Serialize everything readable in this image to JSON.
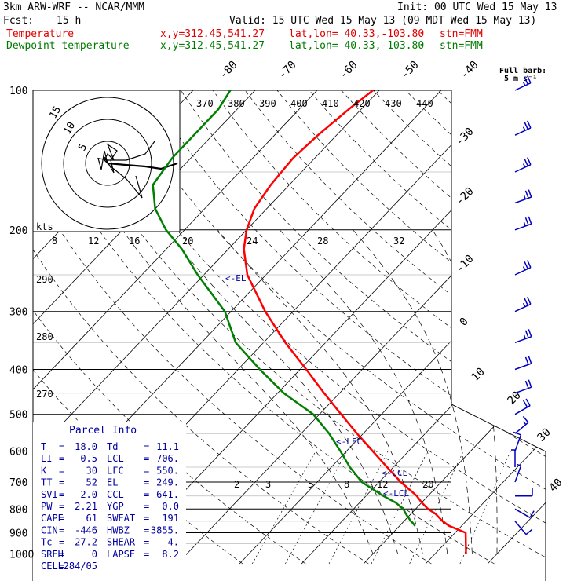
{
  "header": {
    "model": "3km ARW-WRF -- NCAR/MMM",
    "init": "Init: 00 UTC Wed 15 May 13",
    "fcst_label": "Fcst:",
    "fcst_hours": "15 h",
    "valid": "Valid: 15 UTC Wed 15 May 13 (09 MDT Wed 15 May 13)",
    "temp_line": {
      "name": "Temperature",
      "xy": "x,y=312.45,541.27",
      "latlon": "lat,lon= 40.33,-103.80",
      "stn": "stn=FMM"
    },
    "dew_line": {
      "name": "Dewpoint temperature",
      "xy": "x,y=312.45,541.27",
      "latlon": "lat,lon= 40.33,-103.80",
      "stn": "stn=FMM"
    },
    "barb_legend": "Full barb:",
    "barb_legend_units": "5 m s⁻¹"
  },
  "colors": {
    "temperature": "#ff0000",
    "dewpoint": "#008000",
    "wind_barbs": "#0000c0",
    "labels_blue": "#0000a0"
  },
  "chart_data": {
    "type": "line",
    "title": "Skew-T log-P",
    "pressure_levels": [
      "100",
      "200",
      "300",
      "400",
      "500",
      "600",
      "700",
      "800",
      "900",
      "1000"
    ],
    "isotherm_labels_top": [
      "-80",
      "-70",
      "-60",
      "-50",
      "-40"
    ],
    "isotherm_labels_right": [
      "-30",
      "-20",
      "-10",
      "0",
      "10",
      "20",
      "30",
      "40"
    ],
    "theta_labels": [
      "370",
      "380",
      "390",
      "400",
      "410",
      "420",
      "430",
      "440"
    ],
    "dry_adiabat_labels": [
      "290",
      "280",
      "270"
    ],
    "hodograph": {
      "units": "kts",
      "ring_labels": [
        "5",
        "10",
        "15"
      ],
      "speed_scale": [
        "8",
        "12",
        "16",
        "20",
        "24",
        "28",
        "32"
      ]
    },
    "mixing_ratio_labels": [
      "2",
      "3",
      "5",
      "8",
      "12",
      "20"
    ],
    "levels_labels": {
      "el": "<-EL",
      "lfc": "<-LFC",
      "ccl": "<-CCL",
      "lcl": "<-LCL"
    },
    "series": [
      {
        "name": "Temperature",
        "p": [
          1000,
          900,
          870,
          850,
          820,
          800,
          775,
          750,
          700,
          650,
          600,
          550,
          500,
          450,
          400,
          350,
          300,
          250,
          220,
          200,
          180,
          160,
          140,
          125,
          110,
          100
        ],
        "t": [
          25.0,
          21.7,
          18.0,
          16.2,
          14.0,
          12.0,
          10.0,
          8.2,
          3.5,
          -1.0,
          -5.8,
          -11.0,
          -16.5,
          -22.5,
          -29.0,
          -36.5,
          -44.5,
          -53.0,
          -57.5,
          -60.0,
          -62.0,
          -63.0,
          -63.5,
          -63.0,
          -62.0,
          -61.0
        ]
      },
      {
        "name": "Dewpoint temperature",
        "p": [
          870,
          855,
          850,
          820,
          800,
          775,
          750,
          700,
          650,
          600,
          550,
          500,
          450,
          400,
          350,
          300,
          250,
          220,
          200,
          180,
          160,
          140,
          125,
          110,
          100
        ],
        "t": [
          12.5,
          11.5,
          11.1,
          9.2,
          8.0,
          5.8,
          2.8,
          -2.8,
          -7.0,
          -11.0,
          -15.5,
          -21.0,
          -29.0,
          -36.5,
          -44.5,
          -51.0,
          -61.0,
          -67.5,
          -73.0,
          -78.0,
          -82.0,
          -83.0,
          -83.0,
          -83.0,
          -84.0
        ]
      }
    ],
    "hodograph_trace_kts": [
      [
        19.5,
        10.5
      ],
      [
        18.0,
        12.5
      ],
      [
        15.0,
        13.5
      ],
      [
        12.0,
        13.5
      ],
      [
        10.5,
        13.2
      ],
      [
        11.0,
        15.0
      ],
      [
        11.5,
        12.0
      ],
      [
        12.0,
        14.0
      ],
      [
        11.5,
        13.0
      ],
      [
        13.0,
        15.5
      ],
      [
        12.5,
        13.5
      ],
      [
        13.5,
        12.0
      ],
      [
        12.0,
        11.0
      ],
      [
        13.0,
        13.5
      ],
      [
        12.0,
        12.5
      ],
      [
        11.5,
        13.5
      ],
      [
        12.5,
        14.5
      ],
      [
        15.0,
        16.5
      ],
      [
        17.5,
        19.5
      ],
      [
        16.5,
        16.0
      ]
    ],
    "wind_barbs_kts": [
      {
        "p": 850,
        "speed": 10,
        "dir": 320
      },
      {
        "p": 800,
        "speed": 10,
        "dir": 300
      },
      {
        "p": 750,
        "speed": 10,
        "dir": 270
      },
      {
        "p": 700,
        "speed": 5,
        "dir": 200
      },
      {
        "p": 650,
        "speed": 5,
        "dir": 180
      },
      {
        "p": 600,
        "speed": 10,
        "dir": 200
      },
      {
        "p": 550,
        "speed": 15,
        "dir": 230
      },
      {
        "p": 500,
        "speed": 20,
        "dir": 240
      },
      {
        "p": 450,
        "speed": 20,
        "dir": 250
      },
      {
        "p": 400,
        "speed": 20,
        "dir": 250
      },
      {
        "p": 350,
        "speed": 25,
        "dir": 250
      },
      {
        "p": 300,
        "speed": 25,
        "dir": 245
      },
      {
        "p": 250,
        "speed": 25,
        "dir": 245
      },
      {
        "p": 200,
        "speed": 25,
        "dir": 250
      },
      {
        "p": 175,
        "speed": 25,
        "dir": 250
      },
      {
        "p": 150,
        "speed": 25,
        "dir": 245
      },
      {
        "p": 125,
        "speed": 25,
        "dir": 245
      },
      {
        "p": 100,
        "speed": 25,
        "dir": 245
      }
    ]
  },
  "parcel_info": {
    "title": "Parcel Info",
    "rows": [
      {
        "k1": "T",
        "v1": "18.0",
        "k2": "Td",
        "v2": "11.1"
      },
      {
        "k1": "LI",
        "v1": "-0.5",
        "k2": "LCL",
        "v2": "706."
      },
      {
        "k1": "K",
        "v1": "30",
        "k2": "LFC",
        "v2": "550."
      },
      {
        "k1": "TT",
        "v1": "52",
        "k2": "EL",
        "v2": "249."
      },
      {
        "k1": "SVI",
        "v1": "-2.0",
        "k2": "CCL",
        "v2": "641."
      },
      {
        "k1": "PW",
        "v1": "2.21",
        "k2": "YGP",
        "v2": "0.0"
      },
      {
        "k1": "CAPE",
        "v1": "61",
        "k2": "SWEAT",
        "v2": "191"
      },
      {
        "k1": "CIN",
        "v1": "-446",
        "k2": "HWBZ",
        "v2": "3855."
      },
      {
        "k1": "Tc",
        "v1": "27.2",
        "k2": "SHEAR",
        "v2": "4."
      },
      {
        "k1": "SREH",
        "v1": "0",
        "k2": "LAPSE",
        "v2": "8.2"
      },
      {
        "k1": "CELL",
        "v1": "284/05",
        "k2": "",
        "v2": ""
      }
    ]
  }
}
